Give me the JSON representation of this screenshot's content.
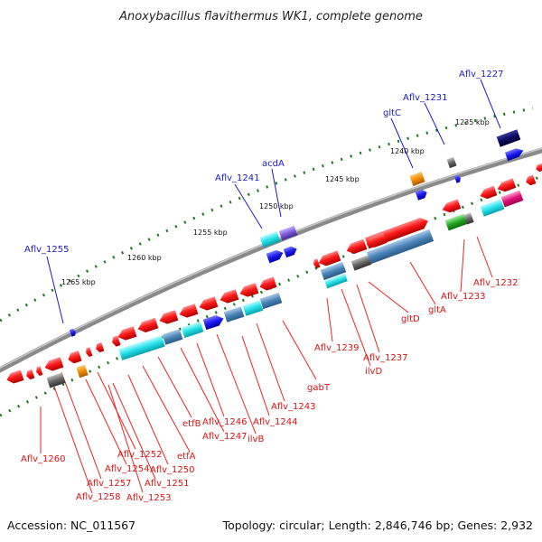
{
  "title": "Anoxybacillus flavithermus WK1, complete genome",
  "footer": {
    "accession": "Accession: NC_011567",
    "summary": "Topology: circular; Length: 2,846,746 bp; Genes: 2,932"
  },
  "scale_labels": [
    "1235 kbp",
    "1240 kbp",
    "1245 kbp",
    "1250 kbp",
    "1255 kbp",
    "1260 kbp",
    "1265 kbp"
  ],
  "top_genes": [
    "Aflv_1227",
    "Aflv_1231",
    "gltC",
    "acdA",
    "Aflv_1241",
    "Aflv_1255"
  ],
  "bottom_genes": [
    "Aflv_1232",
    "Aflv_1233",
    "gltA",
    "gltD",
    "Aflv_1237",
    "ilvD",
    "Aflv_1239",
    "gabT",
    "Aflv_1243",
    "Aflv_1244",
    "ilvB",
    "Aflv_1246",
    "Aflv_1247",
    "etfB",
    "etfA",
    "Aflv_1250",
    "Aflv_1251",
    "Aflv_1252",
    "Aflv_1253",
    "Aflv_1254",
    "Aflv_1257",
    "Aflv_1258",
    "Aflv_1260"
  ],
  "colors": {
    "backbone": "#8a8a8a",
    "tick_dots": "#1b7a1b",
    "gene_red": "#ee1111",
    "gene_blue": "#1a1aee",
    "gene_cyan": "#22e0e8",
    "gene_steel": "#4a84b8",
    "gene_navy": "#0a0a60",
    "gene_orange": "#f08c00",
    "gene_grey": "#666666",
    "gene_green": "#22aa22",
    "gene_magenta": "#e0107a",
    "gene_purple": "#7b5bd8",
    "label_top": "#1a1acc",
    "label_bottom": "#dd1111"
  }
}
